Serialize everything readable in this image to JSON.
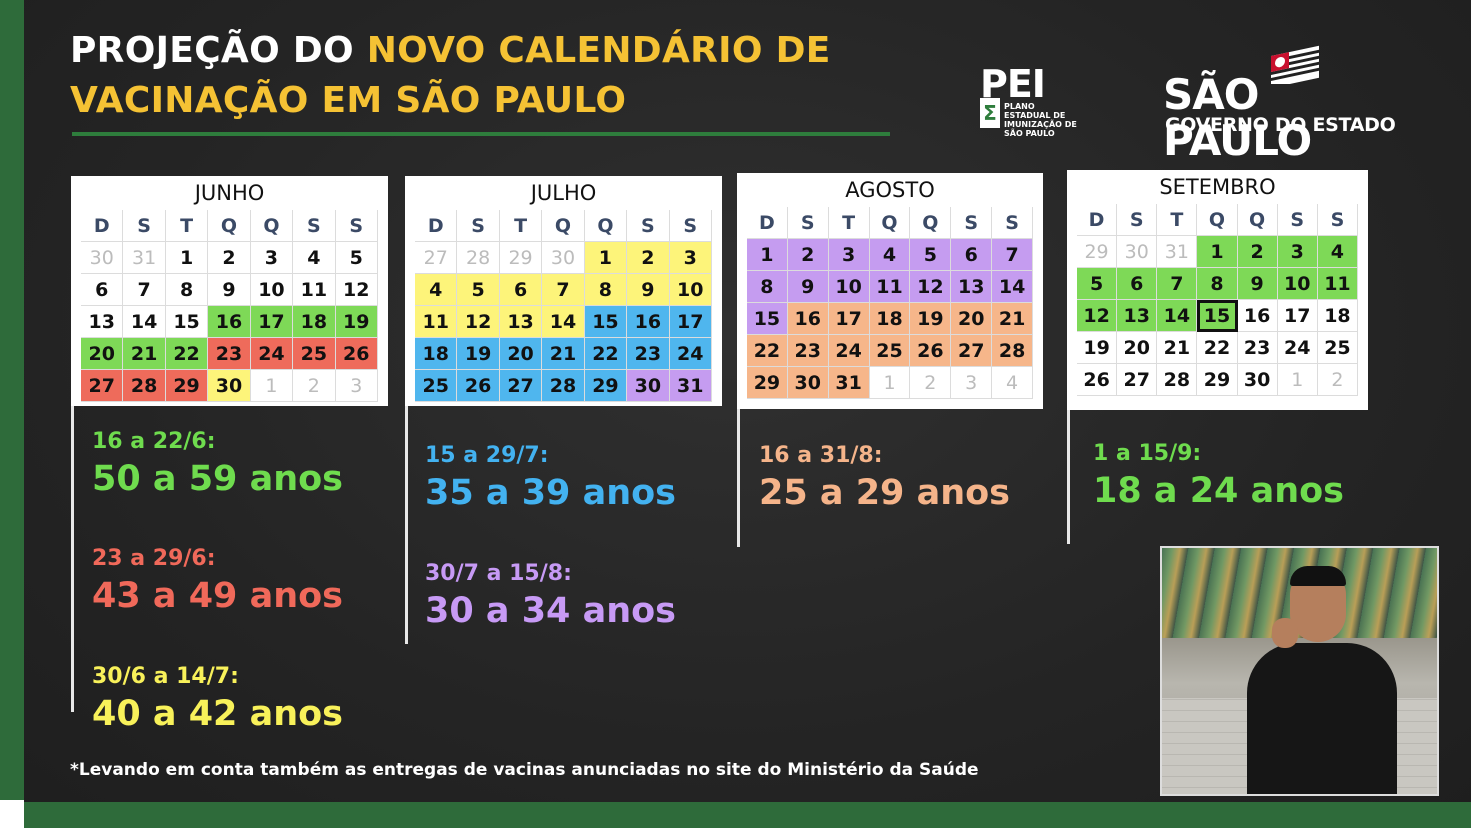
{
  "title": {
    "line1_white": "PROJEÇÃO DO ",
    "line1_yellow": "NOVO CALENDÁRIO DE",
    "line2_yellow": "VACINAÇÃO EM SÃO PAULO"
  },
  "logos": {
    "pei": {
      "big": "PEI",
      "symbol": "Σ",
      "small": "PLANO ESTADUAL DE IMUNIZAÇÃO DE SÃO PAULO"
    },
    "sp": {
      "name": "SÃO PAULO",
      "sub": "GOVERNO DO ESTADO"
    }
  },
  "weekday_headers": [
    "D",
    "S",
    "T",
    "Q",
    "Q",
    "S",
    "S"
  ],
  "calendars": [
    {
      "month": "JUNHO",
      "days": [
        [
          "30",
          "fade"
        ],
        [
          "31",
          "fade"
        ],
        [
          "1",
          "white"
        ],
        [
          "2",
          "white"
        ],
        [
          "3",
          "white"
        ],
        [
          "4",
          "white"
        ],
        [
          "5",
          "white"
        ],
        [
          "6",
          "white"
        ],
        [
          "7",
          "white"
        ],
        [
          "8",
          "white"
        ],
        [
          "9",
          "white"
        ],
        [
          "10",
          "white"
        ],
        [
          "11",
          "white"
        ],
        [
          "12",
          "white"
        ],
        [
          "13",
          "white"
        ],
        [
          "14",
          "white"
        ],
        [
          "15",
          "white"
        ],
        [
          "16",
          "green"
        ],
        [
          "17",
          "green"
        ],
        [
          "18",
          "green"
        ],
        [
          "19",
          "green"
        ],
        [
          "20",
          "green"
        ],
        [
          "21",
          "green"
        ],
        [
          "22",
          "green"
        ],
        [
          "23",
          "red"
        ],
        [
          "24",
          "red"
        ],
        [
          "25",
          "red"
        ],
        [
          "26",
          "red"
        ],
        [
          "27",
          "red"
        ],
        [
          "28",
          "red"
        ],
        [
          "29",
          "red"
        ],
        [
          "30",
          "yellow"
        ],
        [
          "1",
          "fade"
        ],
        [
          "2",
          "fade"
        ],
        [
          "3",
          "fade"
        ]
      ]
    },
    {
      "month": "JULHO",
      "days": [
        [
          "27",
          "fade"
        ],
        [
          "28",
          "fade"
        ],
        [
          "29",
          "fade"
        ],
        [
          "30",
          "fade"
        ],
        [
          "1",
          "yellow"
        ],
        [
          "2",
          "yellow"
        ],
        [
          "3",
          "yellow"
        ],
        [
          "4",
          "yellow"
        ],
        [
          "5",
          "yellow"
        ],
        [
          "6",
          "yellow"
        ],
        [
          "7",
          "yellow"
        ],
        [
          "8",
          "yellow"
        ],
        [
          "9",
          "yellow"
        ],
        [
          "10",
          "yellow"
        ],
        [
          "11",
          "yellow"
        ],
        [
          "12",
          "yellow"
        ],
        [
          "13",
          "yellow"
        ],
        [
          "14",
          "yellow"
        ],
        [
          "15",
          "blue"
        ],
        [
          "16",
          "blue"
        ],
        [
          "17",
          "blue"
        ],
        [
          "18",
          "blue"
        ],
        [
          "19",
          "blue"
        ],
        [
          "20",
          "blue"
        ],
        [
          "21",
          "blue"
        ],
        [
          "22",
          "blue"
        ],
        [
          "23",
          "blue"
        ],
        [
          "24",
          "blue"
        ],
        [
          "25",
          "blue"
        ],
        [
          "26",
          "blue"
        ],
        [
          "27",
          "blue"
        ],
        [
          "28",
          "blue"
        ],
        [
          "29",
          "blue"
        ],
        [
          "30",
          "purple"
        ],
        [
          "31",
          "purple"
        ]
      ]
    },
    {
      "month": "AGOSTO",
      "days": [
        [
          "1",
          "purple"
        ],
        [
          "2",
          "purple"
        ],
        [
          "3",
          "purple"
        ],
        [
          "4",
          "purple"
        ],
        [
          "5",
          "purple"
        ],
        [
          "6",
          "purple"
        ],
        [
          "7",
          "purple"
        ],
        [
          "8",
          "purple"
        ],
        [
          "9",
          "purple"
        ],
        [
          "10",
          "purple"
        ],
        [
          "11",
          "purple"
        ],
        [
          "12",
          "purple"
        ],
        [
          "13",
          "purple"
        ],
        [
          "14",
          "purple"
        ],
        [
          "15",
          "purple"
        ],
        [
          "16",
          "orange"
        ],
        [
          "17",
          "orange"
        ],
        [
          "18",
          "orange"
        ],
        [
          "19",
          "orange"
        ],
        [
          "20",
          "orange"
        ],
        [
          "21",
          "orange"
        ],
        [
          "22",
          "orange"
        ],
        [
          "23",
          "orange"
        ],
        [
          "24",
          "orange"
        ],
        [
          "25",
          "orange"
        ],
        [
          "26",
          "orange"
        ],
        [
          "27",
          "orange"
        ],
        [
          "28",
          "orange"
        ],
        [
          "29",
          "orange"
        ],
        [
          "30",
          "orange"
        ],
        [
          "31",
          "orange"
        ],
        [
          "1",
          "fade"
        ],
        [
          "2",
          "fade"
        ],
        [
          "3",
          "fade"
        ],
        [
          "4",
          "fade"
        ]
      ]
    },
    {
      "month": "SETEMBRO",
      "days": [
        [
          "29",
          "fade"
        ],
        [
          "30",
          "fade"
        ],
        [
          "31",
          "fade"
        ],
        [
          "1",
          "green"
        ],
        [
          "2",
          "green"
        ],
        [
          "3",
          "green"
        ],
        [
          "4",
          "green"
        ],
        [
          "5",
          "green"
        ],
        [
          "6",
          "green"
        ],
        [
          "7",
          "green"
        ],
        [
          "8",
          "green"
        ],
        [
          "9",
          "green"
        ],
        [
          "10",
          "green"
        ],
        [
          "11",
          "green"
        ],
        [
          "12",
          "green"
        ],
        [
          "13",
          "green"
        ],
        [
          "14",
          "green"
        ],
        [
          "15",
          "green today"
        ],
        [
          "16",
          "white"
        ],
        [
          "17",
          "white"
        ],
        [
          "18",
          "white"
        ],
        [
          "19",
          "white"
        ],
        [
          "20",
          "white"
        ],
        [
          "21",
          "white"
        ],
        [
          "22",
          "white"
        ],
        [
          "23",
          "white"
        ],
        [
          "24",
          "white"
        ],
        [
          "25",
          "white"
        ],
        [
          "26",
          "white"
        ],
        [
          "27",
          "white"
        ],
        [
          "28",
          "white"
        ],
        [
          "29",
          "white"
        ],
        [
          "30",
          "white"
        ],
        [
          "1",
          "fade"
        ],
        [
          "2",
          "fade"
        ]
      ]
    }
  ],
  "groups": {
    "g1": {
      "dates": "16 a 22/6:",
      "ages": "50 a 59 anos",
      "color": "#6fdc4e"
    },
    "g2": {
      "dates": "23 a 29/6:",
      "ages": "43 a 49 anos",
      "color": "#f0695a"
    },
    "g3": {
      "dates": "30/6 a 14/7:",
      "ages": "40 a 42 anos",
      "color": "#f8f15a"
    },
    "g4": {
      "dates": "15 a 29/7:",
      "ages": "35 a 39 anos",
      "color": "#43b2f0"
    },
    "g5": {
      "dates": "30/7 a 15/8:",
      "ages": "30 a 34 anos",
      "color": "#c79af5"
    },
    "g6": {
      "dates": "16 a 31/8:",
      "ages": "25 a 29 anos",
      "color": "#f5b48a"
    },
    "g7": {
      "dates": "1 a 15/9:",
      "ages": "18 a 24 anos",
      "color": "#6fdc4e"
    }
  },
  "footnote": "*Levando em conta também as entregas de vacinas anunciadas no site do Ministério da Saúde"
}
